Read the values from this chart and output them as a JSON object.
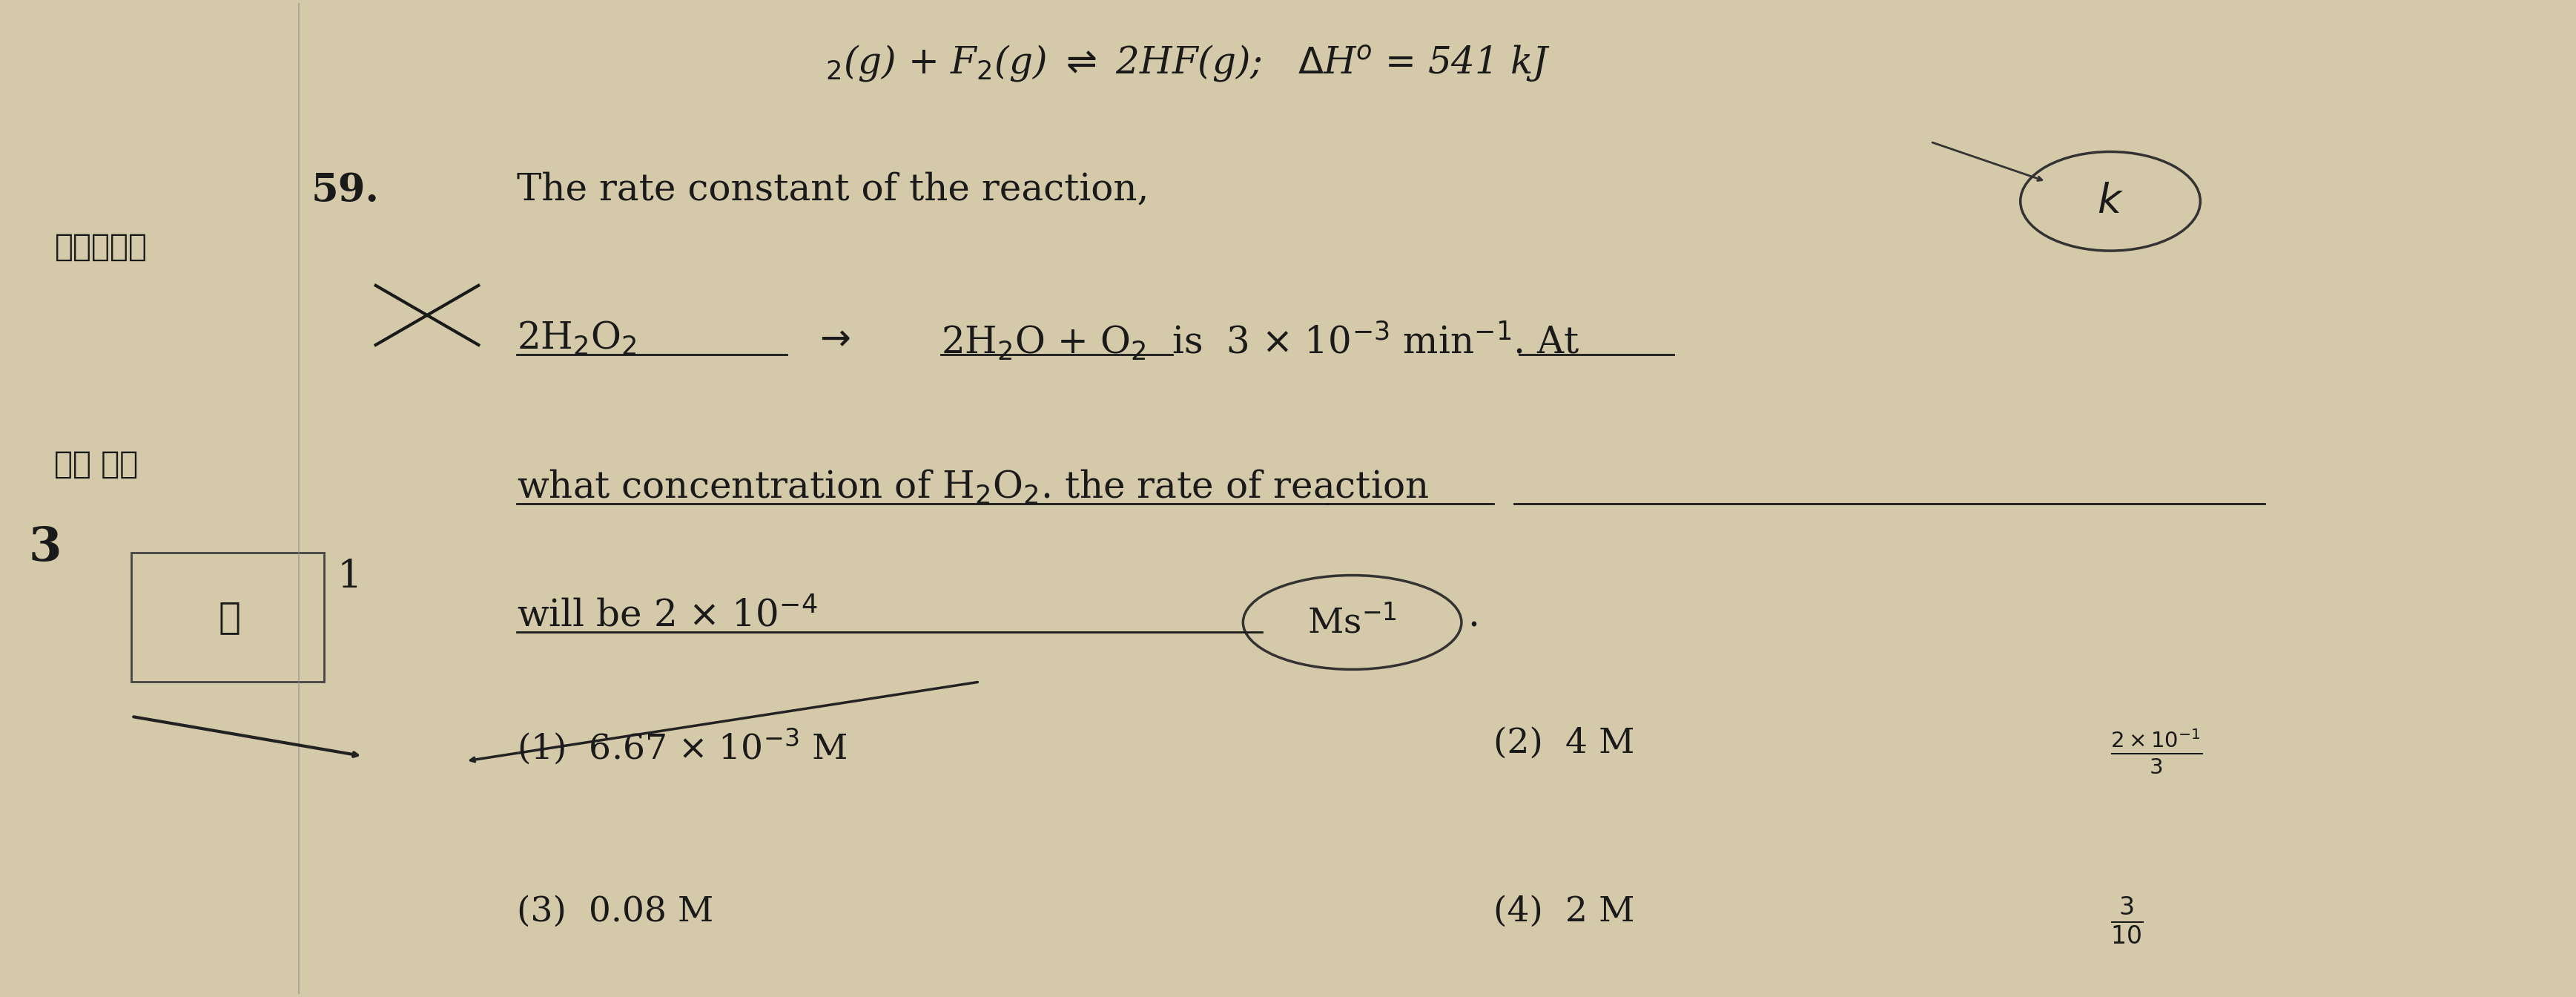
{
  "bg_color": "#d4c9a8",
  "fig_width": 34.74,
  "fig_height": 13.44,
  "top_text": "$_{2}$(g) + F$_{2}$(g) $\\rightleftharpoons$ 2HF(g);   $\\Delta$H$^{o}$ = 541 kJ",
  "problem_number": "59.",
  "line1": "The rate constant of the reaction,",
  "line2": "2H$_{2}$O$_{2}$  $\\rightarrow$  2H$_{2}$O + O$_{2}$  is  3 $\\times$ 10$^{-3}$ min$^{-1}$. At",
  "line3": "what concentration of H$_{2}$O$_{2}$. the rate of reaction",
  "line4": "will be 2 $\\times$ 10$^{-4}$ Ms$^{-1}$.",
  "opt1": "(1)  6.67 $\\times$ 10$^{-3}$ M",
  "opt2": "(2)  4 M",
  "opt3": "(3)  0.08 M",
  "opt4": "(4)  2 M",
  "side_hindi1": "$\\mathregular{यतांक}$",
  "side_hindi2": "$\\mathregular{ता\\ पर}$",
  "text_color": "#1a1a1a",
  "main_fontsize": 36,
  "opt_fontsize": 34,
  "side_fontsize": 30
}
